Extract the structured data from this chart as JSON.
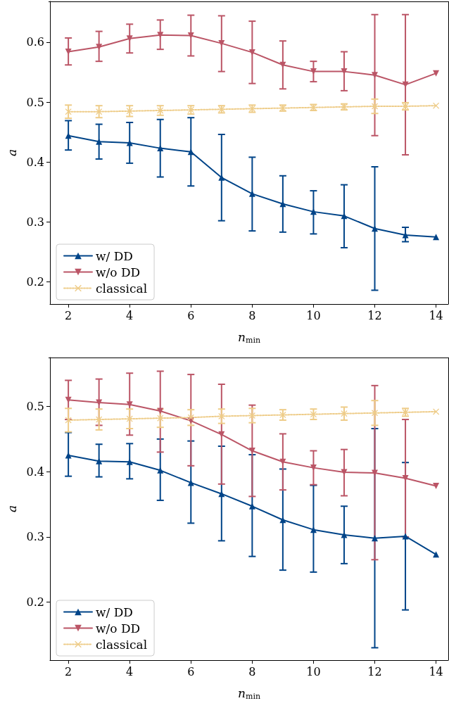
{
  "chart_data": [
    {
      "type": "line",
      "xlabel": "n$_{min}$",
      "ylabel": "a",
      "x": [
        2,
        3,
        4,
        5,
        6,
        7,
        8,
        9,
        10,
        11,
        12,
        13,
        14
      ],
      "xlim": [
        1.4,
        14.4
      ],
      "xticks": [
        2,
        4,
        6,
        8,
        10,
        12,
        14
      ],
      "ylim": [
        0.163,
        0.668
      ],
      "yticks": [
        0.2,
        0.3,
        0.4,
        0.5,
        0.6
      ],
      "grid": false,
      "legend": "bottom left",
      "series": [
        {
          "name": "w/ DD",
          "color": "#004488",
          "marker": "triangle",
          "line_style": "solid",
          "values": [
            0.444,
            0.434,
            0.432,
            0.423,
            0.417,
            0.374,
            0.347,
            0.33,
            0.317,
            0.31,
            0.289,
            0.278,
            0.275
          ],
          "errors": [
            [
              0.42,
              0.469
            ],
            [
              0.405,
              0.463
            ],
            [
              0.398,
              0.466
            ],
            [
              0.375,
              0.471
            ],
            [
              0.36,
              0.474
            ],
            [
              0.302,
              0.446
            ],
            [
              0.285,
              0.408
            ],
            [
              0.283,
              0.377
            ],
            [
              0.28,
              0.352
            ],
            [
              0.257,
              0.362
            ],
            [
              0.186,
              0.392
            ],
            [
              0.267,
              0.291
            ],
            null
          ]
        },
        {
          "name": "w/o DD",
          "color": "#bb5566",
          "marker": "triangle_down",
          "line_style": "solid",
          "values": [
            0.584,
            0.592,
            0.606,
            0.612,
            0.611,
            0.598,
            0.583,
            0.562,
            0.551,
            0.551,
            0.545,
            0.529,
            0.548
          ],
          "errors": [
            [
              0.562,
              0.607
            ],
            [
              0.568,
              0.618
            ],
            [
              0.582,
              0.63
            ],
            [
              0.588,
              0.637
            ],
            [
              0.577,
              0.645
            ],
            [
              0.551,
              0.644
            ],
            [
              0.531,
              0.635
            ],
            [
              0.522,
              0.602
            ],
            [
              0.534,
              0.568
            ],
            [
              0.519,
              0.584
            ],
            [
              0.444,
              0.646
            ],
            [
              0.412,
              0.646
            ],
            null
          ]
        },
        {
          "name": "classical",
          "color": "#eecc88",
          "marker": "cross",
          "line_style": "dotted",
          "values": [
            0.484,
            0.484,
            0.485,
            0.486,
            0.487,
            0.488,
            0.489,
            0.49,
            0.491,
            0.492,
            0.493,
            0.493,
            0.494
          ],
          "errors": [
            0.011,
            0.01,
            0.009,
            0.008,
            0.007,
            0.006,
            0.006,
            0.005,
            0.005,
            0.005,
            0.012,
            0.006,
            null
          ]
        }
      ]
    },
    {
      "type": "line",
      "xlabel": "n$_{min}$",
      "ylabel": "a",
      "x": [
        2,
        3,
        4,
        5,
        6,
        7,
        8,
        9,
        10,
        11,
        12,
        13,
        14
      ],
      "xlim": [
        1.4,
        14.4
      ],
      "xticks": [
        2,
        4,
        6,
        8,
        10,
        12,
        14
      ],
      "ylim": [
        0.111,
        0.575
      ],
      "yticks": [
        0.2,
        0.3,
        0.4,
        0.5
      ],
      "grid": false,
      "legend": "bottom left",
      "series": [
        {
          "name": "w/ DD",
          "color": "#004488",
          "marker": "triangle",
          "line_style": "solid",
          "values": [
            0.425,
            0.416,
            0.415,
            0.402,
            0.383,
            0.366,
            0.347,
            0.326,
            0.311,
            0.303,
            0.298,
            0.301,
            0.273
          ],
          "errors": [
            [
              0.393,
              0.46
            ],
            [
              0.392,
              0.442
            ],
            [
              0.389,
              0.443
            ],
            [
              0.356,
              0.45
            ],
            [
              0.321,
              0.447
            ],
            [
              0.294,
              0.439
            ],
            [
              0.27,
              0.426
            ],
            [
              0.249,
              0.404
            ],
            [
              0.246,
              0.379
            ],
            [
              0.259,
              0.347
            ],
            [
              0.13,
              0.466
            ],
            [
              0.188,
              0.414
            ],
            null
          ]
        },
        {
          "name": "w/o DD",
          "color": "#bb5566",
          "marker": "triangle_down",
          "line_style": "solid",
          "values": [
            0.51,
            0.506,
            0.503,
            0.493,
            0.478,
            0.457,
            0.432,
            0.415,
            0.406,
            0.399,
            0.398,
            0.39,
            0.378
          ],
          "errors": [
            [
              0.48,
              0.54
            ],
            [
              0.471,
              0.542
            ],
            [
              0.456,
              0.551
            ],
            [
              0.43,
              0.554
            ],
            [
              0.409,
              0.549
            ],
            [
              0.381,
              0.534
            ],
            [
              0.362,
              0.502
            ],
            [
              0.372,
              0.458
            ],
            [
              0.38,
              0.432
            ],
            [
              0.363,
              0.434
            ],
            [
              0.265,
              0.532
            ],
            [
              0.3,
              0.48
            ],
            null
          ]
        },
        {
          "name": "classical",
          "color": "#eecc88",
          "marker": "cross",
          "line_style": "dotted",
          "values": [
            0.479,
            0.48,
            0.481,
            0.482,
            0.483,
            0.485,
            0.486,
            0.487,
            0.488,
            0.489,
            0.49,
            0.491,
            0.492
          ],
          "errors": [
            0.018,
            0.016,
            0.015,
            0.014,
            0.012,
            0.011,
            0.011,
            0.008,
            0.008,
            0.01,
            0.019,
            0.006,
            null
          ]
        }
      ]
    }
  ]
}
